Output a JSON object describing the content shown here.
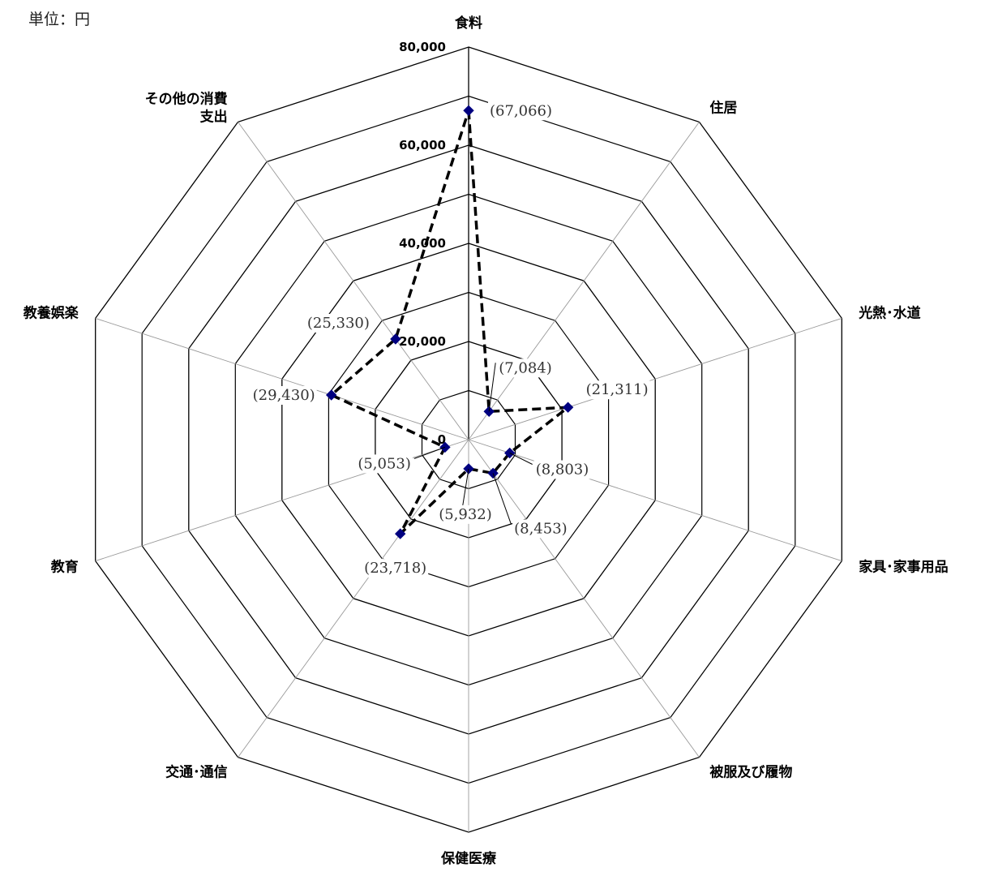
{
  "unit_label": "単位：円",
  "chart_data": {
    "type": "radar",
    "title": "",
    "categories": [
      "食料",
      "住居",
      "光熱･水道",
      "家具･家事用品",
      "被服及び履物",
      "保健医療",
      "交通･通信",
      "教育",
      "教養娯楽",
      "その他の消費支出"
    ],
    "category_lines": [
      [
        "食料"
      ],
      [
        "住居"
      ],
      [
        "光熱･水道"
      ],
      [
        "家具･家事用品"
      ],
      [
        "被服及び履物"
      ],
      [
        "保健医療"
      ],
      [
        "交通･通信"
      ],
      [
        "教育"
      ],
      [
        "教養娯楽"
      ],
      [
        "その他の消費",
        "支出"
      ]
    ],
    "values": [
      67066,
      7084,
      21311,
      8803,
      8453,
      5932,
      23718,
      5053,
      29430,
      25330
    ],
    "data_labels": [
      "(67,066)",
      "(7,084)",
      "(21,311)",
      "(8,803)",
      "(8,453)",
      "(5,932)",
      "(23,718)",
      "(5,053)",
      "(29,430)",
      "(25,330)"
    ],
    "ticks": [
      0,
      20000,
      40000,
      60000,
      80000
    ],
    "tick_labels": [
      "0",
      "20,000",
      "40,000",
      "60,000",
      "80,000"
    ],
    "rlim": [
      0,
      80000
    ],
    "grid": true,
    "legend": "none",
    "colors": {
      "marker": "#000080",
      "line": "#000000",
      "grid": "#000000",
      "spoke": "#999999"
    }
  }
}
